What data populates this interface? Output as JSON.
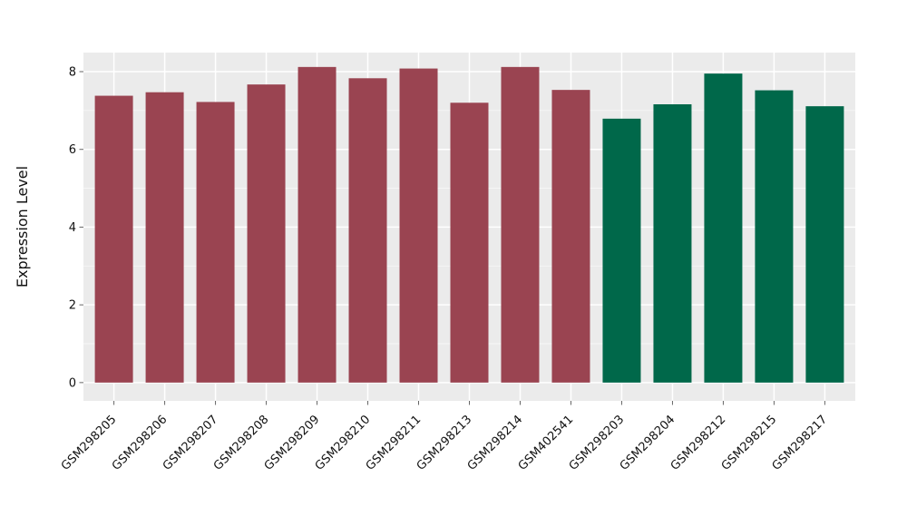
{
  "chart_data": {
    "type": "bar",
    "title": "",
    "xlabel": "",
    "ylabel": "Expression Level",
    "categories": [
      "GSM298205",
      "GSM298206",
      "GSM298207",
      "GSM298208",
      "GSM298209",
      "GSM298210",
      "GSM298211",
      "GSM298213",
      "GSM298214",
      "GSM402541",
      "GSM298203",
      "GSM298204",
      "GSM298212",
      "GSM298215",
      "GSM298217"
    ],
    "values": [
      7.38,
      7.47,
      7.22,
      7.67,
      8.12,
      7.83,
      8.08,
      7.2,
      8.12,
      7.53,
      6.79,
      7.16,
      7.95,
      7.52,
      7.11
    ],
    "bar_groups": [
      "A",
      "A",
      "A",
      "A",
      "A",
      "A",
      "A",
      "A",
      "A",
      "A",
      "B",
      "B",
      "B",
      "B",
      "B"
    ],
    "group_colors": {
      "A": "#9A4451",
      "B": "#00684A"
    },
    "yticks": [
      0,
      2,
      4,
      6,
      8
    ],
    "minor_yticks": [
      1,
      3,
      5,
      7
    ],
    "ylim": [
      -0.47,
      8.49
    ],
    "grid": true,
    "legend": "none",
    "panel_bg": "#EBEBEB",
    "grid_color": "#FFFFFF",
    "axis_text_color": "#111111",
    "tick_mark_color": "#666666",
    "x_tick_angle_deg": 45
  }
}
